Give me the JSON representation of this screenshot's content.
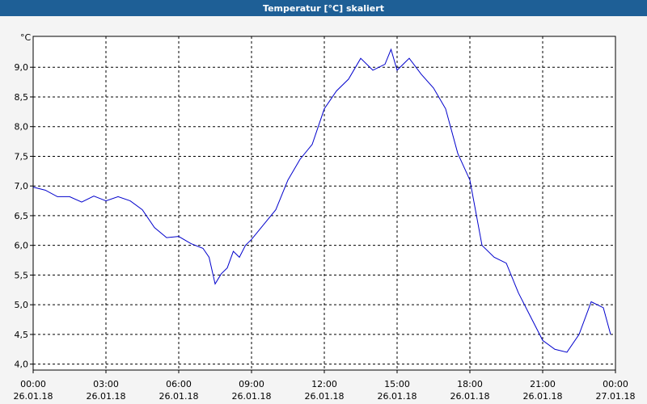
{
  "chart_data": {
    "type": "line",
    "title": "Temperatur [°C] skaliert",
    "y_unit": "°C",
    "x": [
      0,
      0.5,
      1,
      1.5,
      2,
      2.5,
      3,
      3.5,
      4,
      4.5,
      5,
      5.5,
      6,
      6.5,
      7,
      7.25,
      7.5,
      7.75,
      8,
      8.25,
      8.5,
      8.75,
      9,
      9.5,
      10,
      10.5,
      11,
      11.5,
      12,
      12.5,
      13,
      13.5,
      14,
      14.5,
      14.75,
      15,
      15.5,
      16,
      16.5,
      17,
      17.5,
      18,
      18.5,
      19,
      19.5,
      20,
      20.5,
      21,
      21.5,
      22,
      22.5,
      23,
      23.5,
      23.8
    ],
    "series": [
      {
        "name": "Temperatur",
        "color": "#0000cc",
        "values": [
          6.98,
          6.93,
          6.82,
          6.82,
          6.73,
          6.83,
          6.75,
          6.82,
          6.75,
          6.6,
          6.3,
          6.13,
          6.15,
          6.03,
          5.95,
          5.8,
          5.35,
          5.52,
          5.62,
          5.9,
          5.8,
          6.0,
          6.1,
          6.35,
          6.6,
          7.1,
          7.45,
          7.7,
          8.3,
          8.6,
          8.8,
          9.15,
          8.95,
          9.05,
          9.3,
          8.95,
          9.15,
          8.88,
          8.65,
          8.3,
          7.55,
          7.1,
          6.0,
          5.8,
          5.7,
          5.2,
          4.8,
          4.4,
          4.25,
          4.2,
          4.5,
          5.05,
          4.95,
          4.5
        ]
      }
    ],
    "xlim": [
      0,
      24
    ],
    "xticks": [
      {
        "value": 0,
        "label": "00:00"
      },
      {
        "value": 3,
        "label": "03:00"
      },
      {
        "value": 6,
        "label": "06:00"
      },
      {
        "value": 9,
        "label": "09:00"
      },
      {
        "value": 12,
        "label": "12:00"
      },
      {
        "value": 15,
        "label": "15:00"
      },
      {
        "value": 18,
        "label": "18:00"
      },
      {
        "value": 21,
        "label": "21:00"
      },
      {
        "value": 24,
        "label": "00:00"
      }
    ],
    "xtick_dates": [
      "26.01.18",
      "26.01.18",
      "26.01.18",
      "26.01.18",
      "26.01.18",
      "26.01.18",
      "26.01.18",
      "26.01.18",
      "27.01.18"
    ],
    "ylim": [
      3.9,
      9.52
    ],
    "yticks": [
      {
        "value": 4,
        "label": "4,0"
      },
      {
        "value": 4.5,
        "label": "4,5"
      },
      {
        "value": 5,
        "label": "5,0"
      },
      {
        "value": 5.5,
        "label": "5,5"
      },
      {
        "value": 6,
        "label": "6,0"
      },
      {
        "value": 6.5,
        "label": "6,5"
      },
      {
        "value": 7,
        "label": "7,0"
      },
      {
        "value": 7.5,
        "label": "7,5"
      },
      {
        "value": 8,
        "label": "8,0"
      },
      {
        "value": 8.5,
        "label": "8,5"
      },
      {
        "value": 9,
        "label": "9,0"
      }
    ],
    "grid": true
  }
}
